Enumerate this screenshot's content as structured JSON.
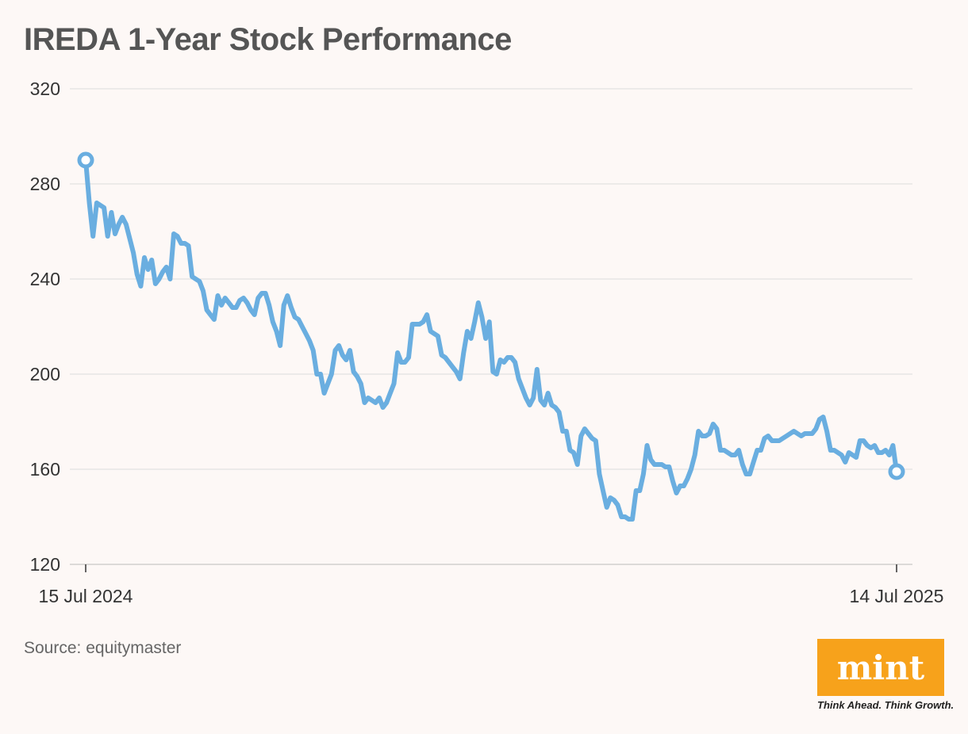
{
  "title": "IREDA 1-Year Stock Performance",
  "source": "Source: equitymaster",
  "logo": {
    "text": "mint",
    "tagline": "Think Ahead. Think Growth."
  },
  "colors": {
    "line": "#6aaee0",
    "grid": "#dcdcdc",
    "logo": "#f7a21b"
  },
  "chart_data": {
    "type": "line",
    "title": "IREDA 1-Year Stock Performance",
    "xlabel": "",
    "ylabel": "",
    "ylim": [
      120,
      320
    ],
    "yticks": [
      120,
      160,
      200,
      240,
      280,
      320
    ],
    "x_tick_labels": [
      "15 Jul 2024",
      "14 Jul 2025"
    ],
    "series": [
      {
        "name": "IREDA",
        "start_label": "15 Jul 2024",
        "end_label": "14 Jul 2025",
        "values": [
          290,
          272,
          258,
          272,
          271,
          270,
          258,
          268,
          259,
          263,
          266,
          263,
          257,
          251,
          242,
          237,
          249,
          244,
          248,
          238,
          240,
          243,
          245,
          240,
          259,
          258,
          255,
          255,
          254,
          241,
          240,
          239,
          235,
          227,
          225,
          223,
          233,
          229,
          232,
          230,
          228,
          228,
          231,
          232,
          230,
          227,
          225,
          232,
          234,
          234,
          229,
          222,
          218,
          212,
          229,
          233,
          228,
          224,
          223,
          220,
          217,
          214,
          210,
          200,
          200,
          192,
          196,
          200,
          210,
          212,
          208,
          206,
          210,
          201,
          199,
          196,
          188,
          190,
          189,
          188,
          190,
          186,
          188,
          192,
          196,
          209,
          205,
          205,
          207,
          221,
          221,
          221,
          222,
          225,
          218,
          217,
          216,
          208,
          207,
          205,
          203,
          201,
          198,
          209,
          218,
          215,
          222,
          230,
          224,
          215,
          222,
          201,
          200,
          206,
          205,
          207,
          207,
          205,
          198,
          194,
          190,
          187,
          190,
          202,
          189,
          187,
          192,
          187,
          186,
          184,
          176,
          176,
          168,
          167,
          162,
          174,
          177,
          175,
          173,
          172,
          158,
          151,
          144,
          148,
          147,
          145,
          140,
          140,
          139,
          139,
          151,
          151,
          158,
          170,
          164,
          162,
          162,
          162,
          161,
          161,
          155,
          150,
          153,
          153,
          156,
          160,
          166,
          176,
          174,
          174,
          175,
          179,
          177,
          168,
          168,
          167,
          166,
          166,
          168,
          162,
          158,
          158,
          163,
          168,
          168,
          173,
          174,
          172,
          172,
          172,
          173,
          174,
          175,
          176,
          175,
          174,
          175,
          175,
          175,
          177,
          181,
          182,
          176,
          168,
          168,
          167,
          166,
          163,
          167,
          166,
          165,
          172,
          172,
          170,
          169,
          170,
          167,
          167,
          168,
          166,
          170,
          159
        ]
      }
    ]
  }
}
